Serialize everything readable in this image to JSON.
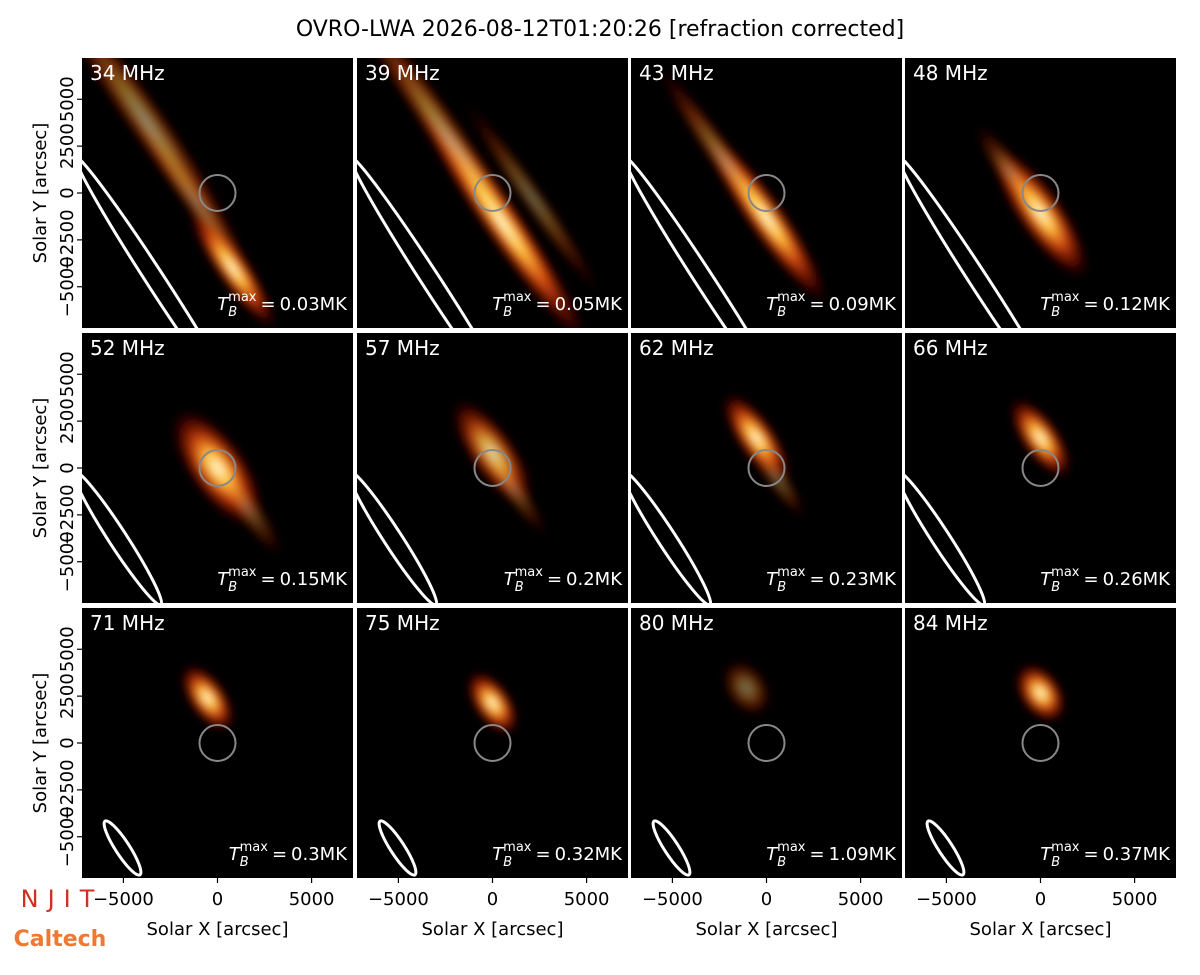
{
  "title": "OVRO-LWA 2026-08-12T01:20:26 [refraction corrected]",
  "xlabel": "Solar X [arcsec]",
  "ylabel": "Solar Y [arcsec]",
  "tb_symbol": {
    "base": "T",
    "sub": "B",
    "sup": "max",
    "relation": "="
  },
  "logos": {
    "njit": "NJIT",
    "caltech": "Caltech"
  },
  "chart_data": [
    {
      "type": "image",
      "title": "34 MHz",
      "annotation": "0.03MK",
      "xlim": [
        -7200,
        7200
      ],
      "ylim": [
        -7200,
        7200
      ],
      "yticks": [
        {
          "value": -5000,
          "label": "−5000"
        },
        {
          "value": -2500,
          "label": "−2500"
        },
        0,
        2500,
        5000
      ]
    },
    {
      "type": "image",
      "title": "39 MHz",
      "annotation": "0.05MK",
      "xlim": [
        -7200,
        7200
      ],
      "ylim": [
        -7200,
        7200
      ]
    },
    {
      "type": "image",
      "title": "43 MHz",
      "annotation": "0.09MK",
      "xlim": [
        -7200,
        7200
      ],
      "ylim": [
        -7200,
        7200
      ]
    },
    {
      "type": "image",
      "title": "48 MHz",
      "annotation": "0.12MK",
      "xlim": [
        -7200,
        7200
      ],
      "ylim": [
        -7200,
        7200
      ]
    },
    {
      "type": "image",
      "title": "52 MHz",
      "annotation": "0.15MK",
      "xlim": [
        -7200,
        7200
      ],
      "ylim": [
        -7200,
        7200
      ],
      "yticks": [
        {
          "value": -5000,
          "label": "−5000"
        },
        {
          "value": -2500,
          "label": "−2500"
        },
        0,
        2500,
        5000
      ]
    },
    {
      "type": "image",
      "title": "57 MHz",
      "annotation": "0.2MK",
      "xlim": [
        -7200,
        7200
      ],
      "ylim": [
        -7200,
        7200
      ]
    },
    {
      "type": "image",
      "title": "62 MHz",
      "annotation": "0.23MK",
      "xlim": [
        -7200,
        7200
      ],
      "ylim": [
        -7200,
        7200
      ]
    },
    {
      "type": "image",
      "title": "66 MHz",
      "annotation": "0.26MK",
      "xlim": [
        -7200,
        7200
      ],
      "ylim": [
        -7200,
        7200
      ]
    },
    {
      "type": "image",
      "title": "71 MHz",
      "annotation": "0.3MK",
      "xlim": [
        -7200,
        7200
      ],
      "ylim": [
        -7200,
        7200
      ],
      "yticks": [
        {
          "value": -5000,
          "label": "−5000"
        },
        {
          "value": -2500,
          "label": "−2500"
        },
        0,
        2500,
        5000
      ],
      "xticks": [
        {
          "value": -5000,
          "label": "−5000"
        },
        0,
        5000
      ]
    },
    {
      "type": "image",
      "title": "75 MHz",
      "annotation": "0.32MK",
      "xlim": [
        -7200,
        7200
      ],
      "ylim": [
        -7200,
        7200
      ],
      "xticks": [
        {
          "value": -5000,
          "label": "−5000"
        },
        0,
        5000
      ]
    },
    {
      "type": "image",
      "title": "80 MHz",
      "annotation": "1.09MK",
      "xlim": [
        -7200,
        7200
      ],
      "ylim": [
        -7200,
        7200
      ],
      "xticks": [
        {
          "value": -5000,
          "label": "−5000"
        },
        0,
        5000
      ]
    },
    {
      "type": "image",
      "title": "84 MHz",
      "annotation": "0.37MK",
      "xlim": [
        -7200,
        7200
      ],
      "ylim": [
        -7200,
        7200
      ],
      "xticks": [
        {
          "value": -5000,
          "label": "−5000"
        },
        0,
        5000
      ]
    }
  ]
}
